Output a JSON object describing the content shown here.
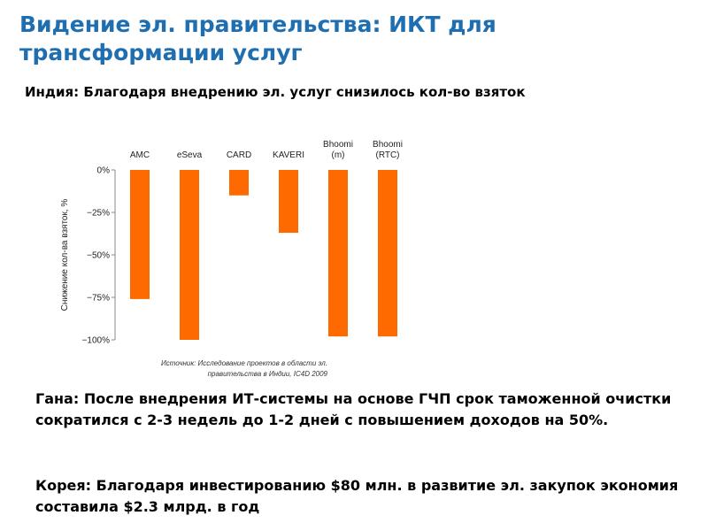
{
  "slide": {
    "title_lines": [
      "Видение эл. правительства: ИКТ для",
      "трансформации услуг"
    ],
    "subtitle": "Индия: Благодаря внедрению эл. услуг снизилось кол-во взяток",
    "source_lines": [
      "Источник: Исследование проектов в области эл.",
      "правительства в Индии, IC4D 2009"
    ],
    "ghana": "Гана: После внедрения ИТ-системы на основе ГЧП срок таможенной очистки сократился с 2-3 недель до 1-2 дней с повышением доходов на 50%.",
    "korea": "Корея: Благодаря инвестированию $80 млн. в развитие эл. закупок экономия составила $2.3 млрд. в год"
  },
  "colors": {
    "title": "#1f6fb0",
    "bar": "#ff6a00"
  },
  "chart_data": {
    "type": "bar",
    "categories": [
      [
        "AMC"
      ],
      [
        "eSeva"
      ],
      [
        "CARD"
      ],
      [
        "KAVERI"
      ],
      [
        "Bhoomi",
        "(m)"
      ],
      [
        "Bhoomi",
        "(RTC)"
      ]
    ],
    "values": [
      -76,
      -100,
      -15,
      -37,
      -98,
      -98
    ],
    "ylabel": "Снижение кол-ва взяток, %",
    "ylim": [
      -100,
      0
    ],
    "yticks": [
      0,
      -25,
      -50,
      -75,
      -100
    ],
    "ytick_labels": [
      "0%",
      "−25%",
      "−50%",
      "−75%",
      "−100%"
    ],
    "category_axis": "top",
    "grid": false
  }
}
